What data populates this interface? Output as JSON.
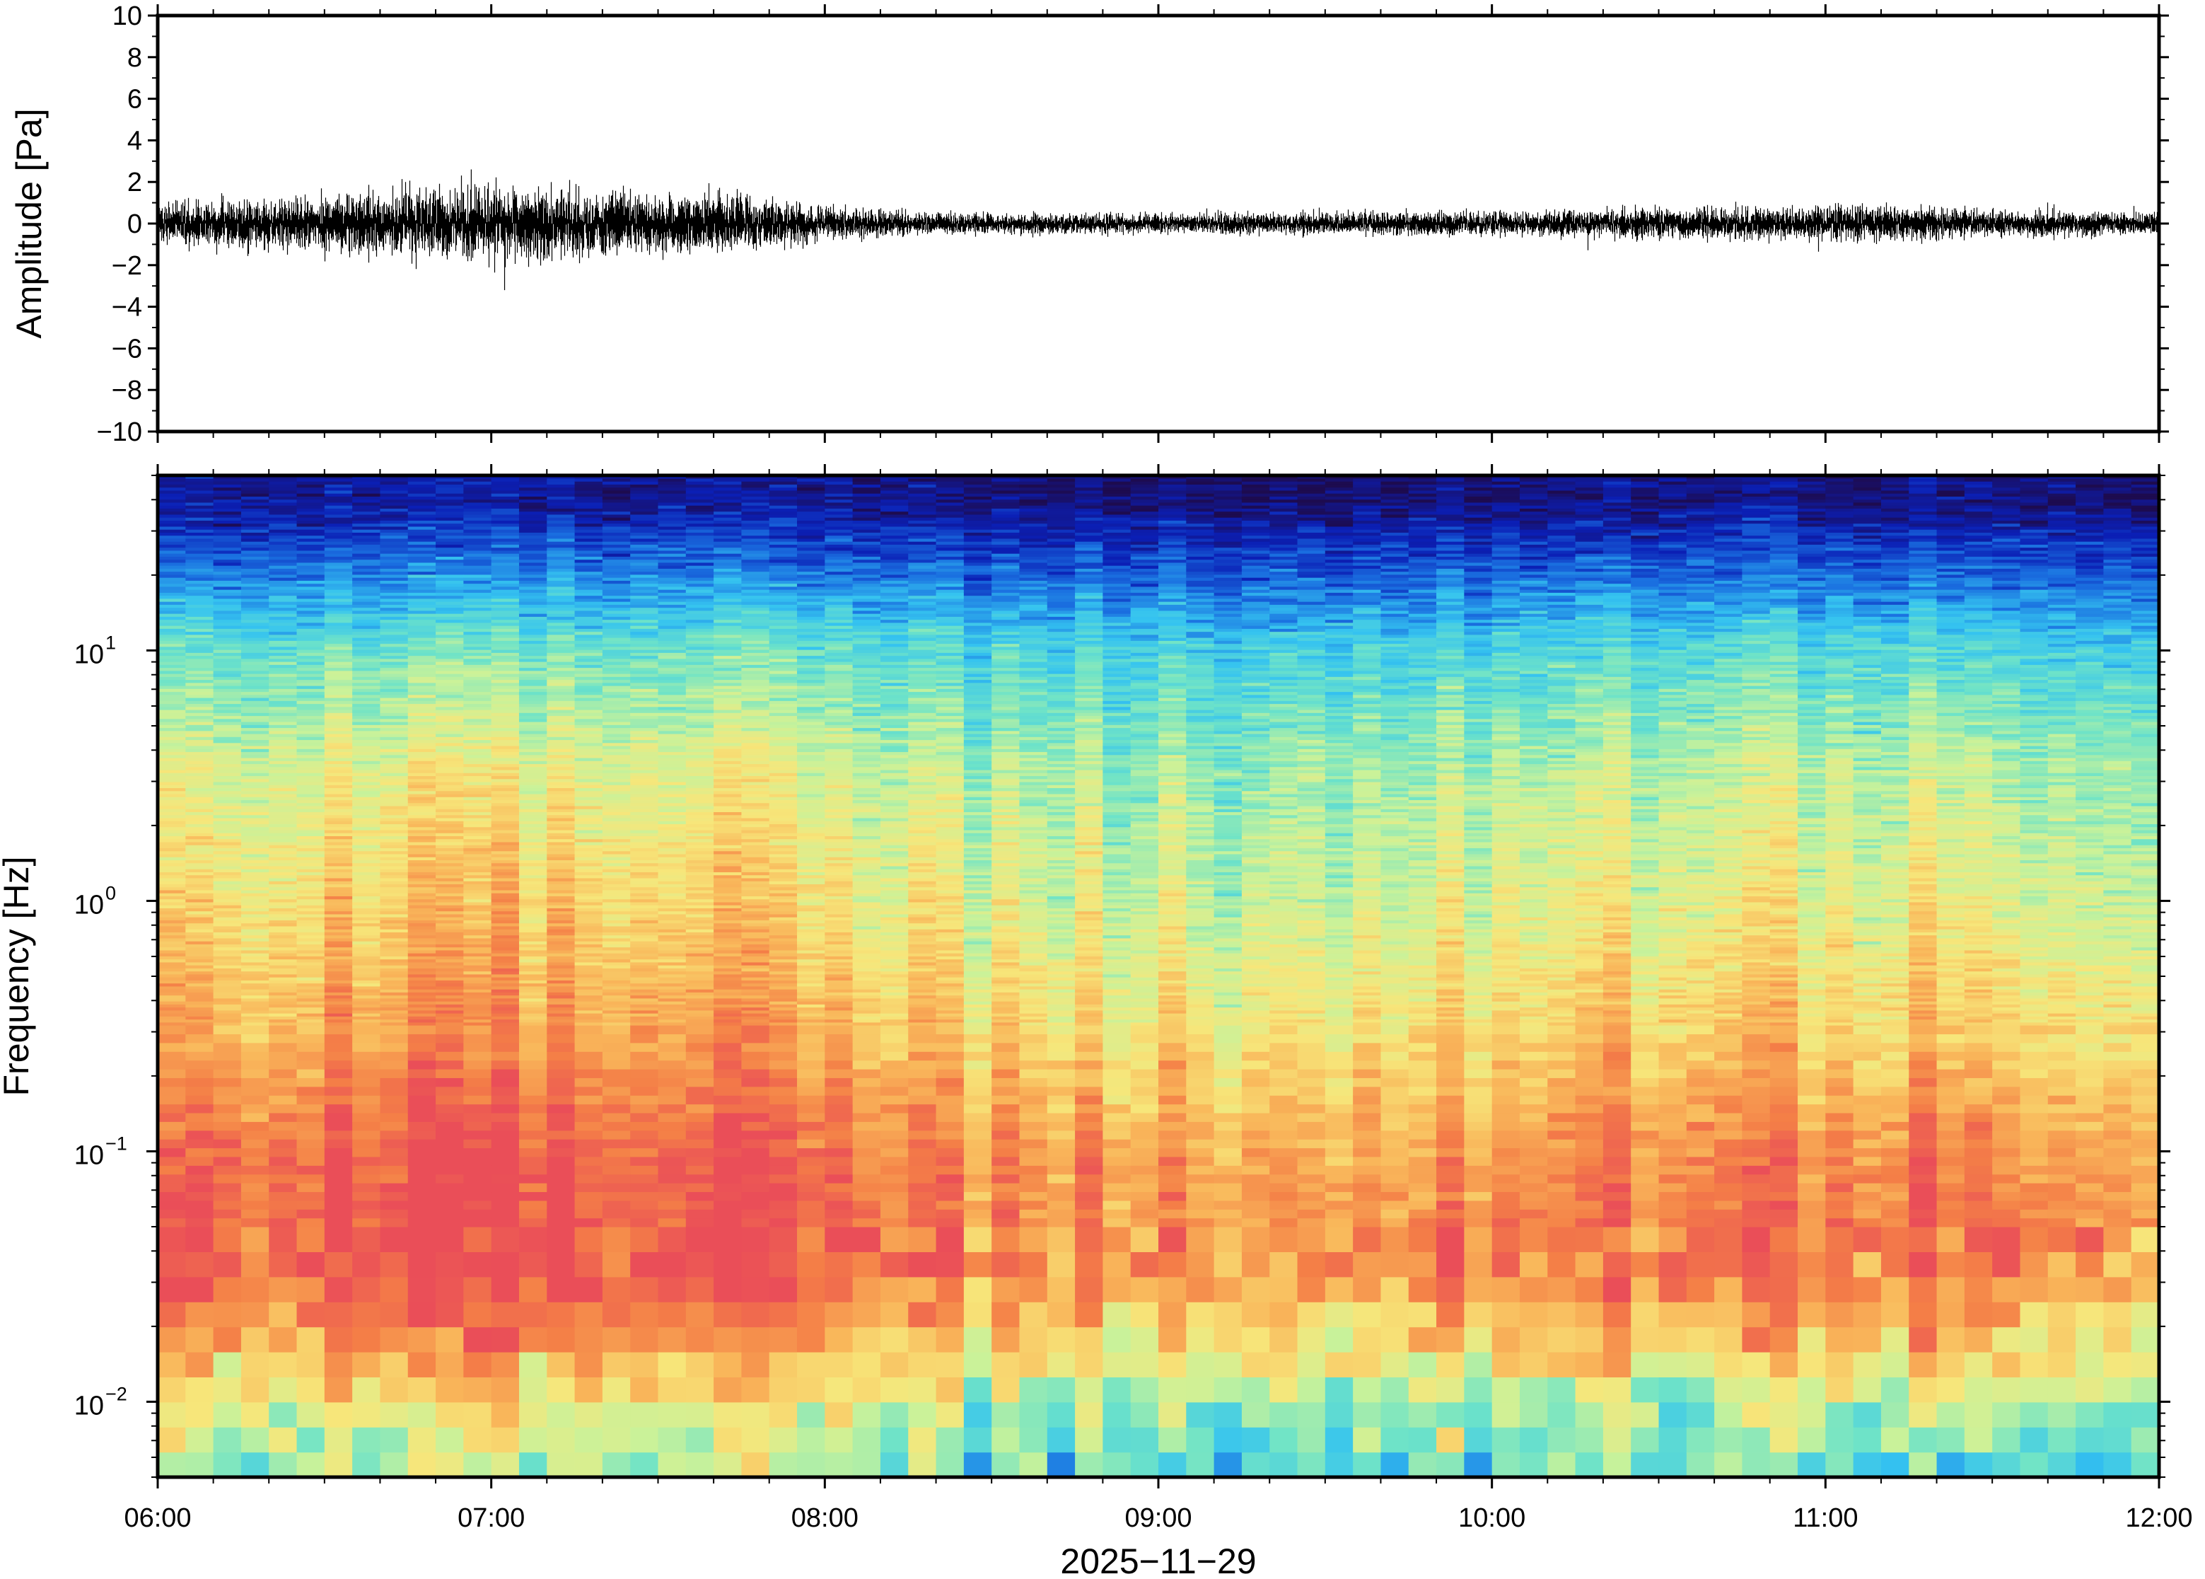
{
  "chart_data": [
    {
      "type": "line",
      "title": "",
      "ylabel": "Amplitude [Pa]",
      "ylim": [
        -10,
        10
      ],
      "yticks": [
        {
          "value": 10,
          "label": "10"
        },
        {
          "value": 8,
          "label": "8"
        },
        {
          "value": 6,
          "label": "6"
        },
        {
          "value": 4,
          "label": "4"
        },
        {
          "value": 2,
          "label": "2"
        },
        {
          "value": 0,
          "label": "0"
        },
        {
          "value": -2,
          "label": "−2"
        },
        {
          "value": -4,
          "label": "−4"
        },
        {
          "value": -6,
          "label": "−6"
        },
        {
          "value": -8,
          "label": "−8"
        },
        {
          "value": -10,
          "label": "−10"
        }
      ],
      "xlim": [
        "2025-11-29 06:00",
        "2025-11-29 12:00"
      ],
      "grid": false,
      "series": [
        {
          "color": "#000000",
          "envelope_hours": [
            6.0,
            6.25,
            6.5,
            6.75,
            7.0,
            7.25,
            7.5,
            7.75,
            8.0,
            8.25,
            8.5,
            9.0,
            9.5,
            10.0,
            10.5,
            11.0,
            11.25,
            11.5,
            12.0
          ],
          "envelope_amplitude_pa": [
            0.9,
            1.0,
            1.1,
            1.3,
            1.5,
            1.3,
            1.2,
            1.1,
            0.7,
            0.45,
            0.4,
            0.4,
            0.45,
            0.45,
            0.6,
            0.7,
            0.7,
            0.55,
            0.4
          ],
          "peak_max_pa": 2.6,
          "peak_min_pa": -3.2
        }
      ]
    },
    {
      "type": "heatmap",
      "title": "",
      "ylabel": "Frequency [Hz]",
      "xlabel": "2025−11−29",
      "yscale": "log",
      "ylim_hz": [
        0.005,
        50
      ],
      "yticks": [
        {
          "value": 0.01,
          "base": "10",
          "exp": "−2"
        },
        {
          "value": 0.1,
          "base": "10",
          "exp": "−1"
        },
        {
          "value": 1,
          "base": "10",
          "exp": "0"
        },
        {
          "value": 10,
          "base": "10",
          "exp": "1"
        }
      ],
      "xticks": [
        "06:00",
        "07:00",
        "08:00",
        "09:00",
        "10:00",
        "11:00",
        "12:00"
      ],
      "xlim": [
        "2025-11-29 06:00",
        "2025-11-29 12:00"
      ],
      "colormap": [
        "#1d0b4f",
        "#0b1fb5",
        "#1a6fe0",
        "#35c3f0",
        "#6ee3c8",
        "#c9f29a",
        "#f7e67a",
        "#f9b65a",
        "#f47f47",
        "#ea4e58"
      ],
      "relative_power_profile": {
        "log10_freq_hz": [
          -2.3,
          -2.0,
          -1.7,
          -1.4,
          -1.0,
          -0.6,
          0.0,
          0.5,
          1.0,
          1.3,
          1.6
        ],
        "level_0_to_1": [
          0.42,
          0.55,
          0.78,
          0.9,
          0.86,
          0.74,
          0.62,
          0.55,
          0.4,
          0.22,
          0.05
        ]
      },
      "time_modulation": {
        "hours": [
          6.0,
          6.5,
          7.0,
          7.5,
          8.0,
          8.5,
          9.0,
          9.5,
          10.0,
          10.5,
          11.0,
          11.5,
          12.0
        ],
        "offset": [
          0.04,
          0.08,
          0.12,
          0.12,
          0.08,
          -0.02,
          -0.05,
          -0.04,
          -0.04,
          0.0,
          0.02,
          0.0,
          -0.03
        ]
      }
    }
  ]
}
